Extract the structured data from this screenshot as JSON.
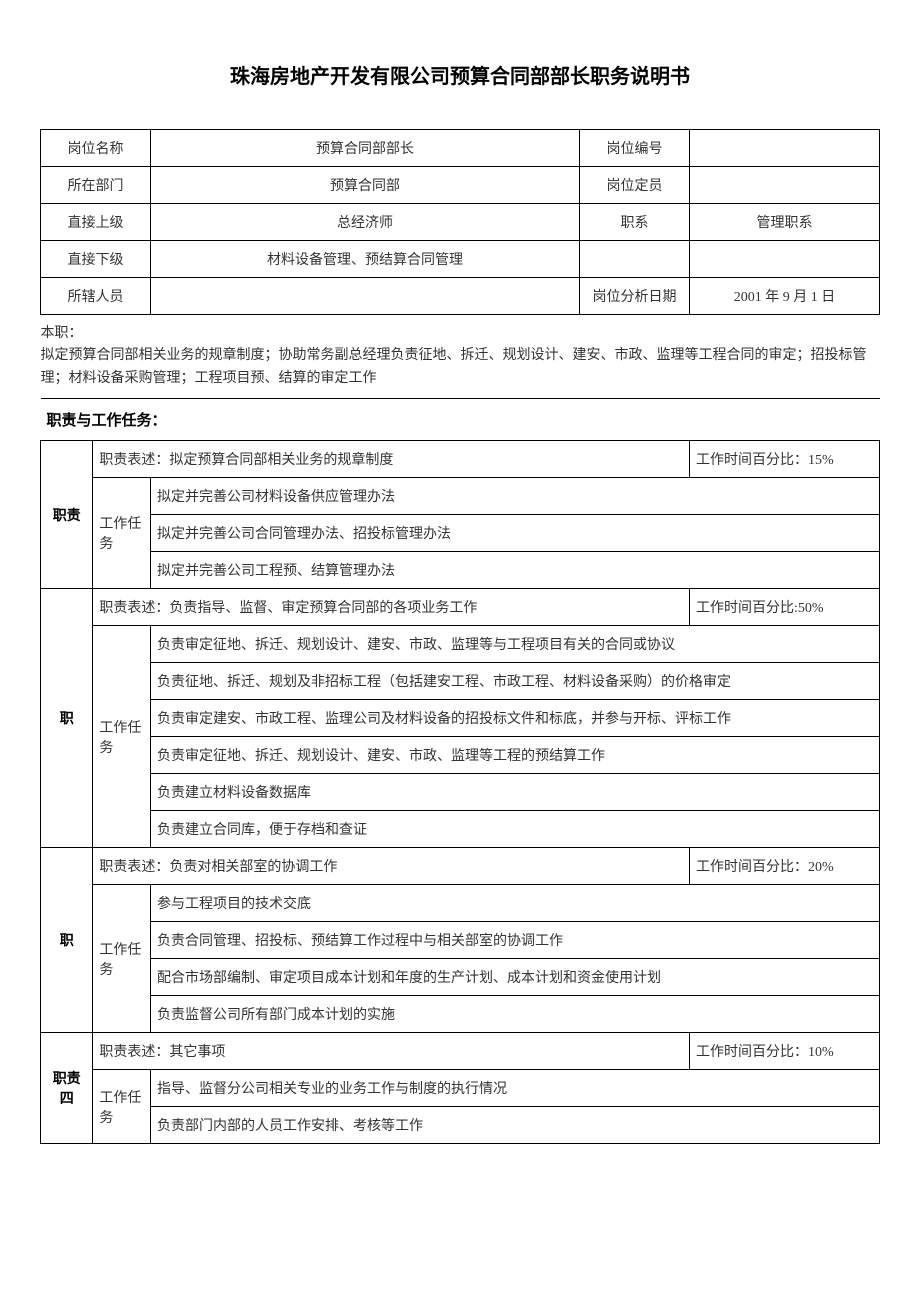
{
  "title": "珠海房地产开发有限公司预算合同部部长职务说明书",
  "info": {
    "position_name_label": "岗位名称",
    "position_name_value": "预算合同部部长",
    "position_code_label": "岗位编号",
    "position_code_value": "",
    "department_label": "所在部门",
    "department_value": "预算合同部",
    "position_quota_label": "岗位定员",
    "position_quota_value": "",
    "direct_superior_label": "直接上级",
    "direct_superior_value": "总经济师",
    "job_series_label": "职系",
    "job_series_value": "管理职系",
    "direct_subordinate_label": "直接下级",
    "direct_subordinate_value": "材料设备管理、预结算合同管理",
    "staff_label": "所辖人员",
    "staff_value": "",
    "analysis_date_label": "岗位分析日期",
    "analysis_date_value": "2001 年 9 月 1 日"
  },
  "benzhi": {
    "header": "本职：",
    "content": "拟定预算合同部相关业务的规章制度；协助常务副总经理负责征地、拆迁、规划设计、建安、市政、监理等工程合同的审定；招投标管理；材料设备采购管理；工程项目预、结算的审定工作"
  },
  "duties_header": "职责与工作任务：",
  "duties": [
    {
      "label": "职责",
      "desc_label": "职责表述：拟定预算合同部相关业务的规章制度",
      "time_label": "工作时间百分比：15%",
      "task_label": "工作任务",
      "tasks": [
        "拟定并完善公司材料设备供应管理办法",
        "拟定并完善公司合同管理办法、招投标管理办法",
        "拟定并完善公司工程预、结算管理办法"
      ]
    },
    {
      "label": "职",
      "desc_label": "职责表述：负责指导、监督、审定预算合同部的各项业务工作",
      "time_label": "工作时间百分比:50%",
      "task_label": "工作任务",
      "tasks": [
        "负责审定征地、拆迁、规划设计、建安、市政、监理等与工程项目有关的合同或协议",
        "负责征地、拆迁、规划及非招标工程（包括建安工程、市政工程、材料设备采购）的价格审定",
        "负责审定建安、市政工程、监理公司及材料设备的招投标文件和标底，并参与开标、评标工作",
        "负责审定征地、拆迁、规划设计、建安、市政、监理等工程的预结算工作",
        "负责建立材料设备数据库",
        "负责建立合同库，便于存档和查证"
      ]
    },
    {
      "label": "职",
      "desc_label": "职责表述：负责对相关部室的协调工作",
      "time_label": "工作时间百分比：20%",
      "task_label": "工作任务",
      "tasks": [
        "参与工程项目的技术交底",
        "负责合同管理、招投标、预结算工作过程中与相关部室的协调工作",
        "配合市场部编制、审定项目成本计划和年度的生产计划、成本计划和资金使用计划",
        "负责监督公司所有部门成本计划的实施"
      ]
    },
    {
      "label": "职责四",
      "desc_label": "职责表述：其它事项",
      "time_label": "工作时间百分比：10%",
      "task_label": "工作任务",
      "tasks": [
        "指导、监督分公司相关专业的业务工作与制度的执行情况",
        "负责部门内部的人员工作安排、考核等工作"
      ]
    }
  ]
}
